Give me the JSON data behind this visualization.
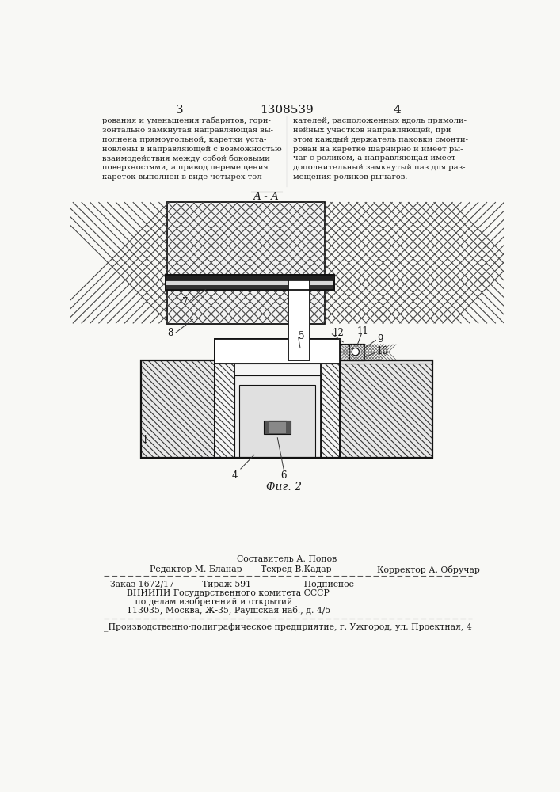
{
  "background_color": "#f8f8f5",
  "page_width": 7.07,
  "page_height": 10.0,
  "header": {
    "page_left": "3",
    "title_center": "1308539",
    "page_right": "4"
  },
  "left_column_text": [
    "рования и уменьшения габаритов, гори-",
    "зонтально замкнутая направляющая вы-",
    "полнена прямоугольной, каретки уста-",
    "новлены в направляющей с возможностью",
    "взаимодействия между собой боковыми",
    "поверхностями, а привод перемещения",
    "кареток выполнен в виде четырех тол-"
  ],
  "right_column_text": [
    "кателей, расположенных вдоль прямоли-",
    "нейных участков направляющей, при",
    "этом каждый держатель паковки смонти-",
    "рован на каретке шарнирно и имеет ры-",
    "чаг с роликом, а направляющая имеет",
    "дополнительный замкнутый паз для раз-",
    "мещения роликов рычагов."
  ],
  "figure_label": "А - А",
  "figure_caption": "Фиг. 2",
  "footer_line1_left": "Редактор М. Бланар",
  "footer_line1_center": "Составитель А. Попов",
  "footer_line1_right": "Корректор А. Обручар",
  "footer_line2_center": "Техред В.Кадар",
  "footer_info": [
    "Заказ 1672/17          Тираж 591                   Подписное",
    "      ВНИИПИ Государственного комитета СССР",
    "         по делам изобретений и открытий",
    "      113035, Москва, Ж-35, Раушская наб., д. 4/5"
  ],
  "footer_bottom": "_Производственно-полиграфическое предприятие, г. Ужгород, ул. Проектная, 4"
}
